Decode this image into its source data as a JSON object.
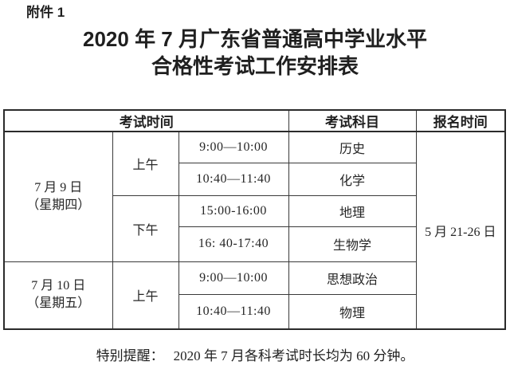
{
  "page": {
    "attachment_label": "附件 1",
    "title_line1": "2020 年 7 月广东省普通高中学业水平",
    "title_line2": "合格性考试工作安排表",
    "footer_label": "特别提醒：",
    "footer_text": "2020 年 7 月各科考试时长均为 60 分钟。"
  },
  "table": {
    "headers": {
      "exam_time": "考试时间",
      "exam_subject": "考试科目",
      "registration_time": "报名时间"
    },
    "days": [
      {
        "date": "7 月 9 日",
        "weekday": "（星期四）"
      },
      {
        "date": "7 月 10 日",
        "weekday": "（星期五）"
      }
    ],
    "sessions": [
      "上午",
      "下午",
      "上午"
    ],
    "rows": [
      {
        "time": "9:00—10:00",
        "subject": "历史"
      },
      {
        "time": "10:40—11:40",
        "subject": "化学"
      },
      {
        "time": "15:00-16:00",
        "subject": "地理"
      },
      {
        "time": "16: 40-17:40",
        "subject": "生物学"
      },
      {
        "time": "9:00—10:00",
        "subject": "思想政治"
      },
      {
        "time": "10:40—11:40",
        "subject": "物理"
      }
    ],
    "registration_value": "5 月 21-26 日"
  },
  "colors": {
    "text": "#1f1f1f",
    "subject_text": "#5a5a5a",
    "border_thick": "#2b2b2b",
    "border_thin": "#3a3a3a",
    "background": "#ffffff"
  }
}
